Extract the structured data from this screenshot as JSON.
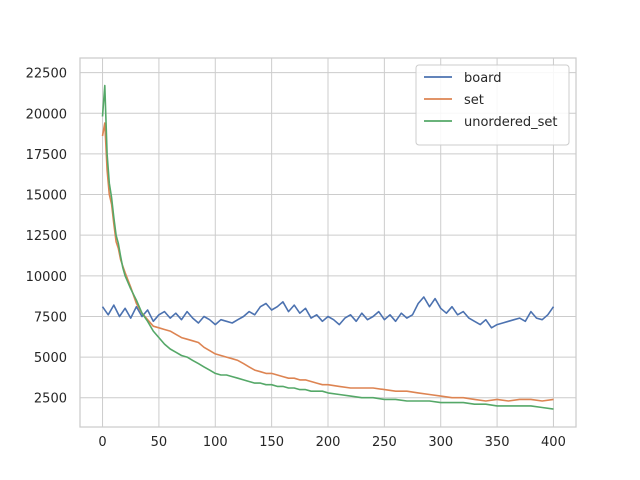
{
  "chart_data": {
    "type": "line",
    "title": "",
    "xlabel": "",
    "ylabel": "",
    "xlim": [
      -20,
      420
    ],
    "ylim": [
      700,
      23400
    ],
    "xticks": [
      0,
      50,
      100,
      150,
      200,
      250,
      300,
      350,
      400
    ],
    "yticks": [
      2500,
      5000,
      7500,
      10000,
      12500,
      15000,
      17500,
      20000,
      22500
    ],
    "grid": true,
    "legend": "top-right",
    "series": [
      {
        "name": "board",
        "color": "#4c72b0",
        "x": [
          0,
          5,
          10,
          15,
          20,
          25,
          30,
          35,
          40,
          45,
          50,
          55,
          60,
          65,
          70,
          75,
          80,
          85,
          90,
          95,
          100,
          105,
          110,
          115,
          120,
          125,
          130,
          135,
          140,
          145,
          150,
          155,
          160,
          165,
          170,
          175,
          180,
          185,
          190,
          195,
          200,
          205,
          210,
          215,
          220,
          225,
          230,
          235,
          240,
          245,
          250,
          255,
          260,
          265,
          270,
          275,
          280,
          285,
          290,
          295,
          300,
          305,
          310,
          315,
          320,
          325,
          330,
          335,
          340,
          345,
          350,
          355,
          360,
          365,
          370,
          375,
          380,
          385,
          390,
          395,
          400
        ],
        "y": [
          8100,
          7600,
          8200,
          7500,
          8000,
          7400,
          8100,
          7500,
          7900,
          7200,
          7600,
          7800,
          7400,
          7700,
          7300,
          7800,
          7400,
          7100,
          7500,
          7300,
          7000,
          7300,
          7200,
          7100,
          7300,
          7500,
          7800,
          7600,
          8100,
          8300,
          7900,
          8100,
          8400,
          7800,
          8200,
          7700,
          8000,
          7400,
          7600,
          7200,
          7500,
          7300,
          7000,
          7400,
          7600,
          7200,
          7700,
          7300,
          7500,
          7800,
          7300,
          7600,
          7200,
          7700,
          7400,
          7600,
          8300,
          8700,
          8100,
          8600,
          8000,
          7700,
          8100,
          7600,
          7800,
          7400,
          7200,
          7000,
          7300,
          6800,
          7000,
          7100,
          7200,
          7300,
          7400,
          7200,
          7800,
          7400,
          7300,
          7600,
          8100
        ]
      },
      {
        "name": "set",
        "color": "#dd8452",
        "x": [
          0,
          2,
          4,
          6,
          8,
          10,
          12,
          14,
          16,
          18,
          20,
          25,
          30,
          35,
          40,
          45,
          50,
          55,
          60,
          65,
          70,
          75,
          80,
          85,
          90,
          95,
          100,
          105,
          110,
          115,
          120,
          125,
          130,
          135,
          140,
          145,
          150,
          155,
          160,
          165,
          170,
          175,
          180,
          185,
          190,
          195,
          200,
          210,
          220,
          230,
          240,
          250,
          260,
          270,
          280,
          290,
          300,
          310,
          320,
          330,
          340,
          350,
          360,
          370,
          380,
          390,
          400
        ],
        "y": [
          18600,
          19400,
          16500,
          15000,
          14400,
          13200,
          12100,
          11700,
          11000,
          10600,
          10200,
          9300,
          8300,
          7700,
          7300,
          6900,
          6800,
          6700,
          6600,
          6400,
          6200,
          6100,
          6000,
          5900,
          5600,
          5400,
          5200,
          5100,
          5000,
          4900,
          4800,
          4600,
          4400,
          4200,
          4100,
          4000,
          4000,
          3900,
          3800,
          3700,
          3700,
          3600,
          3600,
          3500,
          3400,
          3300,
          3300,
          3200,
          3100,
          3100,
          3100,
          3000,
          2900,
          2900,
          2800,
          2700,
          2600,
          2500,
          2500,
          2400,
          2300,
          2400,
          2300,
          2400,
          2400,
          2300,
          2400
        ]
      },
      {
        "name": "unordered_set",
        "color": "#55a868",
        "x": [
          0,
          2,
          4,
          6,
          8,
          10,
          12,
          14,
          16,
          18,
          20,
          25,
          30,
          35,
          40,
          45,
          50,
          55,
          60,
          65,
          70,
          75,
          80,
          85,
          90,
          95,
          100,
          105,
          110,
          115,
          120,
          125,
          130,
          135,
          140,
          145,
          150,
          155,
          160,
          165,
          170,
          175,
          180,
          185,
          190,
          195,
          200,
          210,
          220,
          230,
          240,
          250,
          260,
          270,
          280,
          290,
          300,
          310,
          320,
          330,
          340,
          350,
          360,
          370,
          380,
          390,
          400
        ],
        "y": [
          19800,
          21700,
          17500,
          15700,
          14800,
          13600,
          12500,
          12000,
          11200,
          10500,
          10000,
          9200,
          8500,
          7700,
          7200,
          6600,
          6200,
          5800,
          5500,
          5300,
          5100,
          5000,
          4800,
          4600,
          4400,
          4200,
          4000,
          3900,
          3900,
          3800,
          3700,
          3600,
          3500,
          3400,
          3400,
          3300,
          3300,
          3200,
          3200,
          3100,
          3100,
          3000,
          3000,
          2900,
          2900,
          2900,
          2800,
          2700,
          2600,
          2500,
          2500,
          2400,
          2400,
          2300,
          2300,
          2300,
          2200,
          2200,
          2200,
          2100,
          2100,
          2000,
          2000,
          2000,
          2000,
          1900,
          1800
        ]
      }
    ]
  }
}
